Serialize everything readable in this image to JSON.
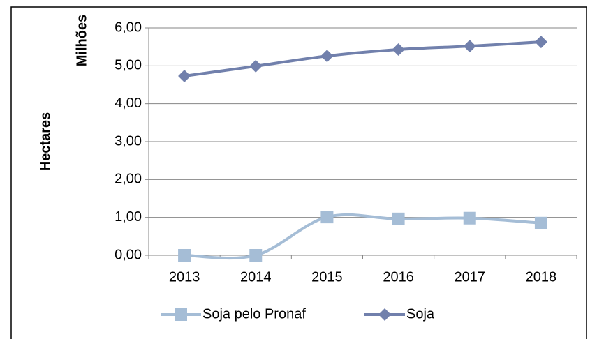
{
  "chart_data": {
    "type": "line",
    "y_label": "Hectares",
    "y_unit_label": "Milhões",
    "categories": [
      "2013",
      "2014",
      "2015",
      "2016",
      "2017",
      "2018"
    ],
    "series": [
      {
        "name": "Soja pelo Pronaf",
        "color": "#a5bdd6",
        "marker": "square",
        "values": [
          0,
          0,
          1.01,
          0.96,
          0.98,
          0.85
        ]
      },
      {
        "name": "Soja",
        "color": "#7180ac",
        "marker": "diamond",
        "values": [
          4.73,
          4.99,
          5.26,
          5.43,
          5.52,
          5.63
        ]
      }
    ],
    "ylim": [
      0,
      6
    ],
    "yticks": [
      {
        "value": 0,
        "label": "0,00"
      },
      {
        "value": 1,
        "label": "1,00"
      },
      {
        "value": 2,
        "label": "2,00"
      },
      {
        "value": 3,
        "label": "3,00"
      },
      {
        "value": 4,
        "label": "4,00"
      },
      {
        "value": 5,
        "label": "5,00"
      },
      {
        "value": 6,
        "label": "6,00"
      }
    ],
    "grid": true,
    "smooth": true,
    "legend": "bottom"
  }
}
